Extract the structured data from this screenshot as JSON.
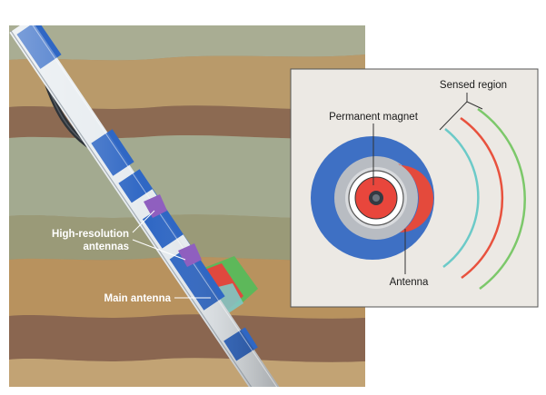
{
  "labels": {
    "high_resolution_line1": "High-resolution",
    "high_resolution_line2": "antennas",
    "main_antenna": "Main antenna",
    "sensed_region": "Sensed region",
    "permanent_magnet": "Permanent magnet",
    "antenna": "Antenna"
  },
  "colors": {
    "formation_tan": "#b89a6a",
    "formation_brown": "#8a6a4a",
    "formation_sage": "#9ba890",
    "tool_blue": "#2f67c4",
    "tool_white": "#e8edf2",
    "inset_background": "#ece9e4",
    "magnet_core": "#e8463c",
    "antenna_red": "#e44a3c",
    "housing_blue": "#3e70c4",
    "housing_gray": "#b8bcc2",
    "sensed_cyan": "#6ccac8",
    "sensed_red": "#e8523e",
    "sensed_green": "#7cc86a",
    "pad_purple": "#8f5fbf",
    "pad_green": "#5db85a",
    "pad_red": "#e0483e"
  }
}
